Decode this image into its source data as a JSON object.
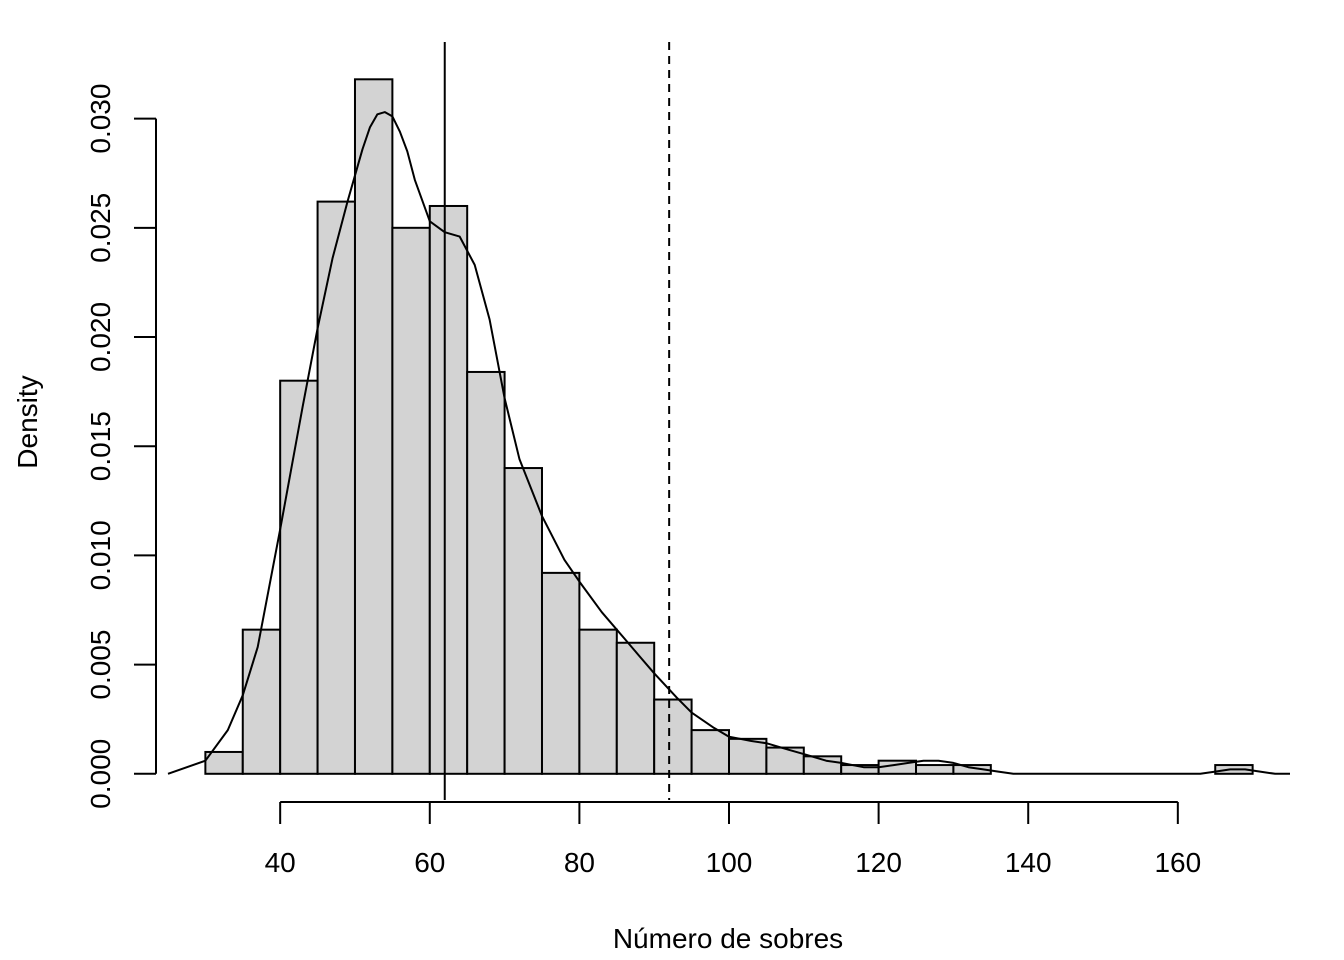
{
  "chart_data": {
    "type": "histogram",
    "title": "",
    "xlabel": "Número de sobres",
    "ylabel": "Density",
    "xlim": [
      23.4,
      176.6
    ],
    "ylim": [
      -0.0012,
      0.0336
    ],
    "x_ticks": [
      40,
      60,
      80,
      100,
      120,
      140,
      160
    ],
    "x_tick_labels": [
      "40",
      "60",
      "80",
      "100",
      "120",
      "140",
      "160"
    ],
    "y_ticks": [
      0.0,
      0.005,
      0.01,
      0.015,
      0.02,
      0.025,
      0.03
    ],
    "y_tick_labels": [
      "0.000",
      "0.005",
      "0.010",
      "0.015",
      "0.020",
      "0.025",
      "0.030"
    ],
    "bar_fill": "#d3d3d3",
    "bar_edges": [
      30,
      35,
      40,
      45,
      50,
      55,
      60,
      65,
      70,
      75,
      80,
      85,
      90,
      95,
      100,
      105,
      110,
      115,
      120,
      125,
      130,
      135,
      140,
      145,
      150,
      155,
      160,
      165,
      170
    ],
    "densities": [
      0.001,
      0.0066,
      0.018,
      0.0262,
      0.0318,
      0.025,
      0.026,
      0.0184,
      0.014,
      0.0092,
      0.0066,
      0.006,
      0.0034,
      0.002,
      0.0016,
      0.0012,
      0.0008,
      0.0004,
      0.0006,
      0.0004,
      0.0004,
      0,
      0,
      0,
      0,
      0,
      0,
      0.0004
    ],
    "density_curve": {
      "x": [
        25,
        30,
        33,
        35,
        37,
        40,
        43,
        45,
        47,
        49,
        51,
        52,
        53,
        54,
        55,
        56,
        57,
        58,
        60,
        62,
        64,
        66,
        68,
        70,
        72,
        75,
        78,
        80,
        83,
        86,
        88,
        90,
        93,
        95,
        98,
        100,
        103,
        105,
        108,
        110,
        113,
        115,
        118,
        120,
        122,
        124,
        126,
        128,
        130,
        132,
        134,
        136,
        138,
        140,
        145,
        150,
        155,
        160,
        163,
        165,
        167,
        169,
        171,
        173,
        175
      ],
      "y": [
        0.0,
        0.0006,
        0.002,
        0.0036,
        0.0058,
        0.0112,
        0.0168,
        0.0204,
        0.0236,
        0.0262,
        0.0286,
        0.0296,
        0.0302,
        0.0303,
        0.0301,
        0.0294,
        0.0285,
        0.0272,
        0.0253,
        0.0248,
        0.0246,
        0.0233,
        0.0208,
        0.0172,
        0.0144,
        0.0118,
        0.0098,
        0.0088,
        0.0074,
        0.0062,
        0.0054,
        0.0046,
        0.0035,
        0.0028,
        0.0021,
        0.0017,
        0.0015,
        0.0014,
        0.0011,
        0.0009,
        0.0006,
        0.0005,
        0.0003,
        0.0003,
        0.0004,
        0.0005,
        0.0006,
        0.0006,
        0.0005,
        0.0003,
        0.0002,
        0.0001,
        0.0,
        0.0,
        0.0,
        0.0,
        0.0,
        0.0,
        0.0,
        0.0001,
        0.0002,
        0.0002,
        0.0001,
        0.0,
        0.0
      ]
    },
    "reference_lines": [
      {
        "x": 62,
        "style": "solid"
      },
      {
        "x": 92,
        "style": "dashed"
      }
    ]
  }
}
